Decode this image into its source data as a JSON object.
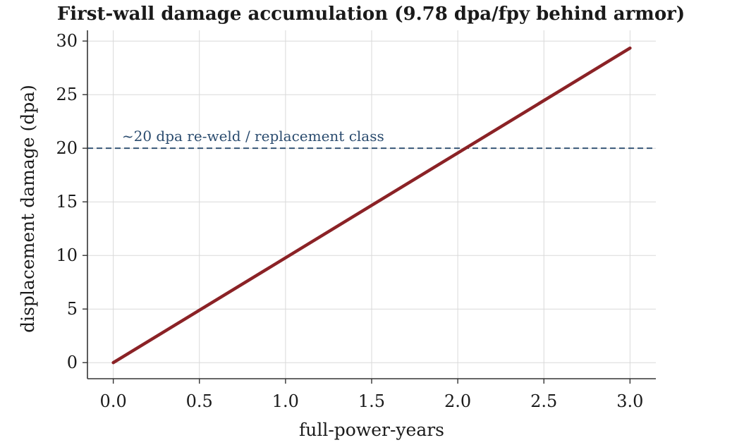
{
  "chart_data": {
    "type": "line",
    "title": "First-wall damage accumulation (9.78 dpa/fpy behind armor)",
    "xlabel": "full-power-years",
    "ylabel": "displacement damage (dpa)",
    "xlim": [
      -0.15,
      3.15
    ],
    "ylim": [
      -1.5,
      31.0
    ],
    "xticks": [
      0.0,
      0.5,
      1.0,
      1.5,
      2.0,
      2.5,
      3.0
    ],
    "xtick_labels": [
      "0.0",
      "0.5",
      "1.0",
      "1.5",
      "2.0",
      "2.5",
      "3.0"
    ],
    "yticks": [
      0,
      5,
      10,
      15,
      20,
      25,
      30
    ],
    "ytick_labels": [
      "0",
      "5",
      "10",
      "15",
      "20",
      "25",
      "30"
    ],
    "grid": true,
    "series": [
      {
        "color": "#8b2226",
        "x": [
          0.0,
          3.0
        ],
        "y": [
          0.0,
          29.34
        ]
      }
    ],
    "reference_line": {
      "y": 20,
      "color": "#2b4c6f",
      "style": "dashed",
      "label": "~20 dpa re-weld / replacement class",
      "label_x": 0.05
    }
  }
}
